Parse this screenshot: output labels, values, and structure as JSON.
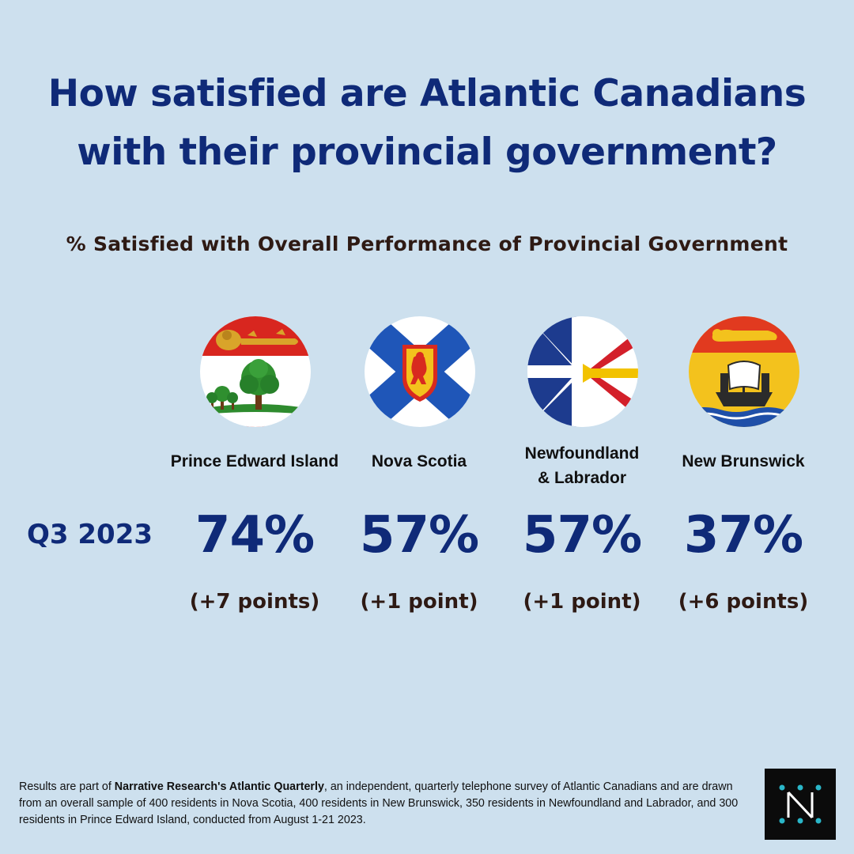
{
  "title_line1": "How satisfied are Atlantic Canadians",
  "title_line2": "with their provincial government?",
  "subtitle": "% Satisfied with Overall Performance of Provincial Government",
  "period": "Q3 2023",
  "provinces": [
    {
      "name_line1": "Prince Edward Island",
      "name_line2": "",
      "value": "74%",
      "change": "(+7 points)",
      "flag_icon": "pei-flag-icon"
    },
    {
      "name_line1": "Nova Scotia",
      "name_line2": "",
      "value": "57%",
      "change": "(+1 point)",
      "flag_icon": "nova-scotia-flag-icon"
    },
    {
      "name_line1": "Newfoundland",
      "name_line2": "& Labrador",
      "value": "57%",
      "change": "(+1 point)",
      "flag_icon": "newfoundland-labrador-flag-icon"
    },
    {
      "name_line1": "New Brunswick",
      "name_line2": "",
      "value": "37%",
      "change": "(+6 points)",
      "flag_icon": "new-brunswick-flag-icon"
    }
  ],
  "footnote": {
    "prefix": "Results are part of ",
    "bold": "Narrative Research's Atlantic Quarterly",
    "suffix": ", an independent, quarterly telephone survey of Atlantic Canadians and are drawn from an overall sample of 400 residents in Nova Scotia, 400 residents in New Brunswick, 350 residents in Newfoundland and Labrador, and 300 residents in Prince Edward Island, conducted from August 1-21 2023."
  },
  "logo": {
    "icon": "narrative-research-logo-icon",
    "letter": "N"
  },
  "colors": {
    "background": "#cde0ee",
    "title": "#0f2a78",
    "text_dark": "#2e1a14",
    "logo_bg": "#0b0b0b",
    "logo_accent": "#2ab6c8"
  }
}
